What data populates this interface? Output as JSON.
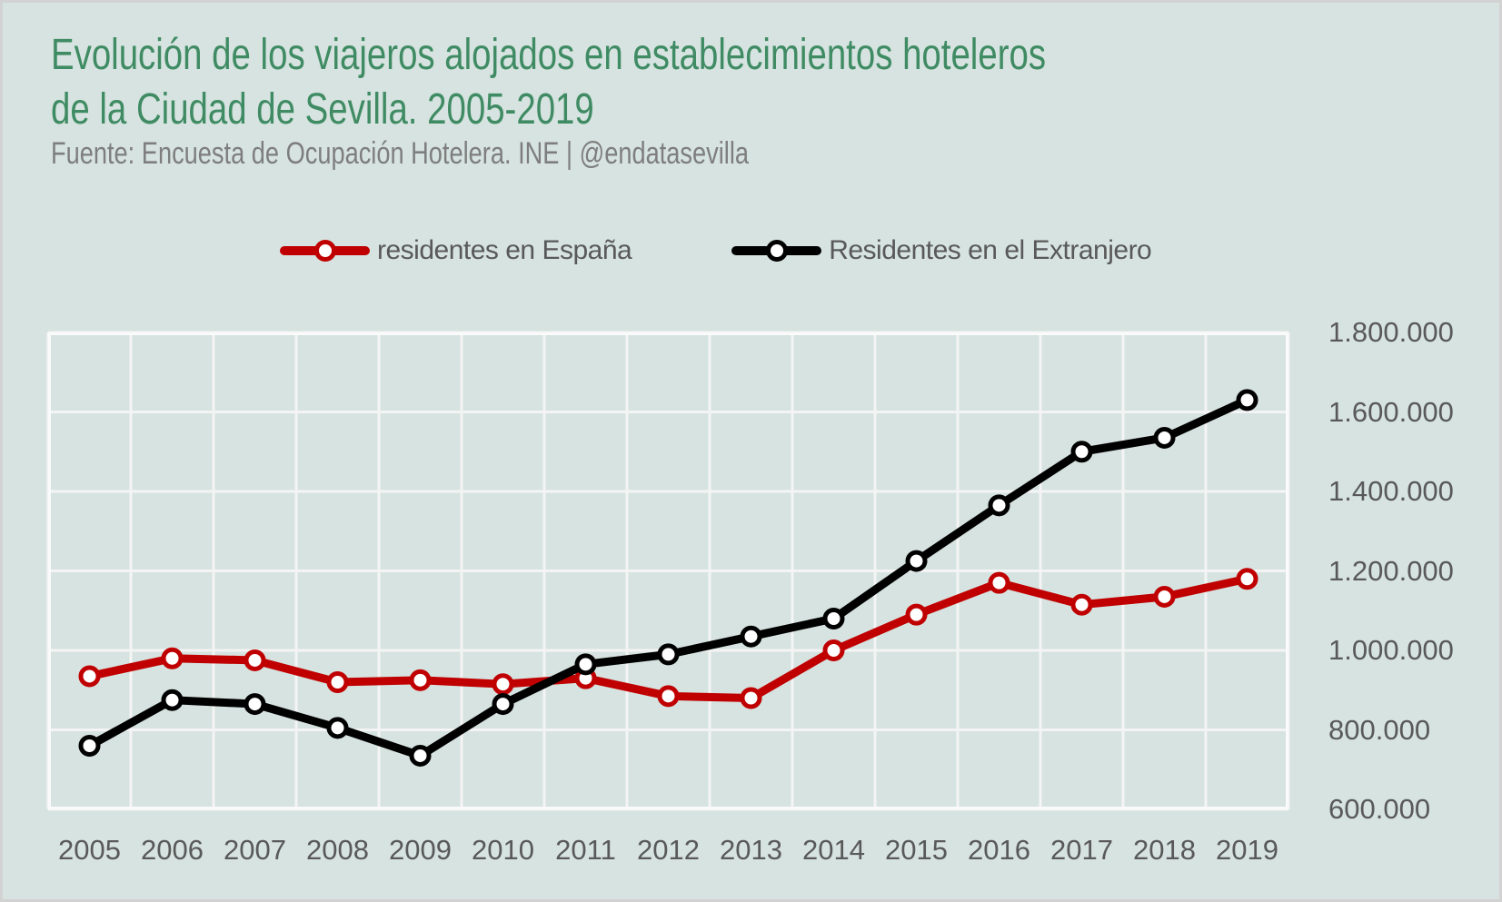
{
  "colors": {
    "background": "#d6e3e0",
    "frame": "#d2d2d2",
    "title": "#3f8b63",
    "subtitle": "#7e7e7e",
    "axis_label": "#595959",
    "legend_text": "#595959",
    "gridline": "#f4f4f4",
    "plot_border": "#fafafa",
    "series_espana": "#c00000",
    "series_extranjero": "#000000"
  },
  "header": {
    "title_line1": "Evolución de los viajeros alojados en establecimientos hoteleros",
    "title_line2": "de la Ciudad de Sevilla. 2005-2019",
    "source": "Fuente: Encuesta de Ocupación Hotelera. INE | @endatasevilla"
  },
  "chart_data": {
    "type": "line",
    "title": "Evolución de los viajeros alojados en establecimientos hoteleros de la Ciudad de Sevilla. 2005-2019",
    "source": "Fuente: Encuesta de Ocupación Hotelera. INE | @endatasevilla",
    "categories": [
      "2005",
      "2006",
      "2007",
      "2008",
      "2009",
      "2010",
      "2011",
      "2012",
      "2013",
      "2014",
      "2015",
      "2016",
      "2017",
      "2018",
      "2019"
    ],
    "series": [
      {
        "name": "residentes en España",
        "color": "#c00000",
        "values": [
          935000,
          980000,
          975000,
          920000,
          925000,
          915000,
          930000,
          885000,
          880000,
          1000000,
          1090000,
          1170000,
          1115000,
          1135000,
          1180000
        ]
      },
      {
        "name": "Residentes en el Extranjero",
        "color": "#000000",
        "values": [
          760000,
          875000,
          865000,
          805000,
          735000,
          865000,
          965000,
          990000,
          1035000,
          1080000,
          1225000,
          1365000,
          1500000,
          1535000,
          1630000
        ]
      }
    ],
    "ylim": [
      600000,
      1800000
    ],
    "ytick_step": 200000,
    "ytick_labels": [
      "1.800.000",
      "1.600.000",
      "1.400.000",
      "1.200.000",
      "1.000.000",
      "800.000",
      "600.000"
    ],
    "grid": true,
    "legend_position": "top",
    "marker": "circle",
    "line_width": 9
  }
}
